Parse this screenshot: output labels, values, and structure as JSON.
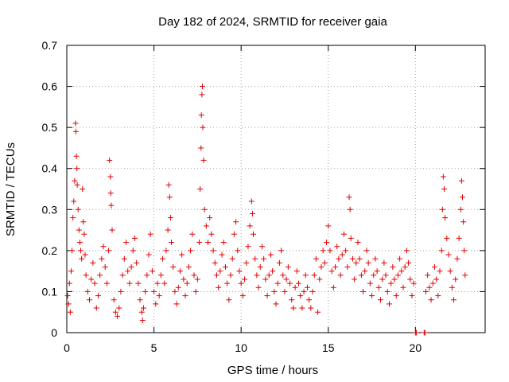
{
  "chart_data": {
    "type": "scatter",
    "title": "Day 182 of 2024, SRMTID for receiver gaia",
    "xlabel": "GPS time / hours",
    "ylabel": "SRMTID / TECUs",
    "xlim": [
      0,
      24
    ],
    "ylim": [
      0,
      0.7
    ],
    "xticks": [
      0,
      5,
      10,
      15,
      20
    ],
    "xtick_labels": [
      "0",
      "5",
      "10",
      "15",
      "20"
    ],
    "yticks": [
      0,
      0.1,
      0.2,
      0.3,
      0.4,
      0.5,
      0.6,
      0.7
    ],
    "ytick_labels": [
      "0",
      "0.1",
      "0.2",
      "0.3",
      "0.4",
      "0.5",
      "0.6",
      "0.7"
    ],
    "grid": true,
    "marker": "+",
    "color": "#e00000",
    "series": [
      {
        "name": "SRMTID",
        "points": [
          [
            0.05,
            0.09
          ],
          [
            0.1,
            0.07
          ],
          [
            0.15,
            0.12
          ],
          [
            0.2,
            0.05
          ],
          [
            0.25,
            0.15
          ],
          [
            0.3,
            0.2
          ],
          [
            0.35,
            0.28
          ],
          [
            0.4,
            0.32
          ],
          [
            0.45,
            0.37
          ],
          [
            0.5,
            0.51
          ],
          [
            0.52,
            0.49
          ],
          [
            0.55,
            0.43
          ],
          [
            0.58,
            0.4
          ],
          [
            0.6,
            0.36
          ],
          [
            0.65,
            0.3
          ],
          [
            0.7,
            0.25
          ],
          [
            0.75,
            0.22
          ],
          [
            0.8,
            0.2
          ],
          [
            0.85,
            0.18
          ],
          [
            0.9,
            0.35
          ],
          [
            0.95,
            0.27
          ],
          [
            1.0,
            0.24
          ],
          [
            1.05,
            0.19
          ],
          [
            1.1,
            0.14
          ],
          [
            1.2,
            0.1
          ],
          [
            1.3,
            0.08
          ],
          [
            1.4,
            0.13
          ],
          [
            1.5,
            0.17
          ],
          [
            1.6,
            0.12
          ],
          [
            1.7,
            0.06
          ],
          [
            1.8,
            0.09
          ],
          [
            1.9,
            0.14
          ],
          [
            2.0,
            0.18
          ],
          [
            2.1,
            0.21
          ],
          [
            2.2,
            0.16
          ],
          [
            2.3,
            0.12
          ],
          [
            2.4,
            0.2
          ],
          [
            2.45,
            0.42
          ],
          [
            2.5,
            0.38
          ],
          [
            2.52,
            0.34
          ],
          [
            2.55,
            0.31
          ],
          [
            2.6,
            0.25
          ],
          [
            2.7,
            0.08
          ],
          [
            2.8,
            0.05
          ],
          [
            2.9,
            0.04
          ],
          [
            3.0,
            0.06
          ],
          [
            3.1,
            0.1
          ],
          [
            3.2,
            0.14
          ],
          [
            3.3,
            0.18
          ],
          [
            3.4,
            0.22
          ],
          [
            3.5,
            0.15
          ],
          [
            3.6,
            0.12
          ],
          [
            3.7,
            0.16
          ],
          [
            3.8,
            0.2
          ],
          [
            3.9,
            0.23
          ],
          [
            4.0,
            0.17
          ],
          [
            4.1,
            0.12
          ],
          [
            4.2,
            0.08
          ],
          [
            4.3,
            0.05
          ],
          [
            4.35,
            0.03
          ],
          [
            4.4,
            0.06
          ],
          [
            4.5,
            0.1
          ],
          [
            4.6,
            0.14
          ],
          [
            4.7,
            0.19
          ],
          [
            4.8,
            0.24
          ],
          [
            4.9,
            0.15
          ],
          [
            5.0,
            0.1
          ],
          [
            5.1,
            0.07
          ],
          [
            5.2,
            0.12
          ],
          [
            5.3,
            0.09
          ],
          [
            5.4,
            0.14
          ],
          [
            5.5,
            0.18
          ],
          [
            5.6,
            0.12
          ],
          [
            5.7,
            0.2
          ],
          [
            5.8,
            0.25
          ],
          [
            5.85,
            0.36
          ],
          [
            5.9,
            0.33
          ],
          [
            5.95,
            0.28
          ],
          [
            6.0,
            0.22
          ],
          [
            6.1,
            0.16
          ],
          [
            6.2,
            0.1
          ],
          [
            6.3,
            0.07
          ],
          [
            6.4,
            0.11
          ],
          [
            6.5,
            0.15
          ],
          [
            6.6,
            0.19
          ],
          [
            6.7,
            0.13
          ],
          [
            6.8,
            0.09
          ],
          [
            6.9,
            0.12
          ],
          [
            7.0,
            0.16
          ],
          [
            7.1,
            0.2
          ],
          [
            7.2,
            0.24
          ],
          [
            7.3,
            0.14
          ],
          [
            7.4,
            0.1
          ],
          [
            7.5,
            0.13
          ],
          [
            7.6,
            0.22
          ],
          [
            7.65,
            0.35
          ],
          [
            7.7,
            0.45
          ],
          [
            7.72,
            0.53
          ],
          [
            7.75,
            0.58
          ],
          [
            7.78,
            0.6
          ],
          [
            7.8,
            0.5
          ],
          [
            7.85,
            0.42
          ],
          [
            7.9,
            0.3
          ],
          [
            8.0,
            0.26
          ],
          [
            8.1,
            0.22
          ],
          [
            8.2,
            0.28
          ],
          [
            8.3,
            0.24
          ],
          [
            8.4,
            0.2
          ],
          [
            8.5,
            0.17
          ],
          [
            8.6,
            0.14
          ],
          [
            8.7,
            0.11
          ],
          [
            8.8,
            0.15
          ],
          [
            8.9,
            0.19
          ],
          [
            9.0,
            0.22
          ],
          [
            9.1,
            0.16
          ],
          [
            9.2,
            0.12
          ],
          [
            9.3,
            0.08
          ],
          [
            9.4,
            0.14
          ],
          [
            9.5,
            0.18
          ],
          [
            9.6,
            0.24
          ],
          [
            9.7,
            0.27
          ],
          [
            9.8,
            0.2
          ],
          [
            9.9,
            0.15
          ],
          [
            10.0,
            0.12
          ],
          [
            10.1,
            0.09
          ],
          [
            10.2,
            0.13
          ],
          [
            10.3,
            0.17
          ],
          [
            10.4,
            0.21
          ],
          [
            10.5,
            0.26
          ],
          [
            10.6,
            0.32
          ],
          [
            10.65,
            0.29
          ],
          [
            10.7,
            0.24
          ],
          [
            10.8,
            0.18
          ],
          [
            10.9,
            0.14
          ],
          [
            11.0,
            0.11
          ],
          [
            11.1,
            0.16
          ],
          [
            11.2,
            0.21
          ],
          [
            11.3,
            0.18
          ],
          [
            11.4,
            0.13
          ],
          [
            11.5,
            0.09
          ],
          [
            11.6,
            0.14
          ],
          [
            11.7,
            0.19
          ],
          [
            11.8,
            0.15
          ],
          [
            11.9,
            0.1
          ],
          [
            12.0,
            0.07
          ],
          [
            12.1,
            0.12
          ],
          [
            12.2,
            0.17
          ],
          [
            12.3,
            0.2
          ],
          [
            12.4,
            0.14
          ],
          [
            12.5,
            0.1
          ],
          [
            12.6,
            0.13
          ],
          [
            12.7,
            0.16
          ],
          [
            12.8,
            0.12
          ],
          [
            12.9,
            0.08
          ],
          [
            13.0,
            0.06
          ],
          [
            13.1,
            0.11
          ],
          [
            13.2,
            0.15
          ],
          [
            13.3,
            0.12
          ],
          [
            13.4,
            0.09
          ],
          [
            13.5,
            0.06
          ],
          [
            13.6,
            0.1
          ],
          [
            13.7,
            0.14
          ],
          [
            13.8,
            0.11
          ],
          [
            13.9,
            0.08
          ],
          [
            14.0,
            0.06
          ],
          [
            14.1,
            0.1
          ],
          [
            14.2,
            0.14
          ],
          [
            14.3,
            0.18
          ],
          [
            14.4,
            0.05
          ],
          [
            14.5,
            0.13
          ],
          [
            14.6,
            0.16
          ],
          [
            14.7,
            0.2
          ],
          [
            14.8,
            0.17
          ],
          [
            14.9,
            0.22
          ],
          [
            15.0,
            0.26
          ],
          [
            15.1,
            0.2
          ],
          [
            15.2,
            0.15
          ],
          [
            15.3,
            0.11
          ],
          [
            15.4,
            0.16
          ],
          [
            15.5,
            0.21
          ],
          [
            15.6,
            0.18
          ],
          [
            15.7,
            0.14
          ],
          [
            15.8,
            0.19
          ],
          [
            15.9,
            0.24
          ],
          [
            16.0,
            0.2
          ],
          [
            16.1,
            0.16
          ],
          [
            16.2,
            0.33
          ],
          [
            16.25,
            0.3
          ],
          [
            16.3,
            0.23
          ],
          [
            16.4,
            0.18
          ],
          [
            16.5,
            0.13
          ],
          [
            16.6,
            0.17
          ],
          [
            16.7,
            0.22
          ],
          [
            16.8,
            0.18
          ],
          [
            16.9,
            0.14
          ],
          [
            17.0,
            0.1
          ],
          [
            17.1,
            0.15
          ],
          [
            17.2,
            0.2
          ],
          [
            17.3,
            0.17
          ],
          [
            17.4,
            0.12
          ],
          [
            17.5,
            0.09
          ],
          [
            17.6,
            0.14
          ],
          [
            17.7,
            0.18
          ],
          [
            17.8,
            0.15
          ],
          [
            17.9,
            0.11
          ],
          [
            18.0,
            0.08
          ],
          [
            18.1,
            0.13
          ],
          [
            18.2,
            0.17
          ],
          [
            18.3,
            0.14
          ],
          [
            18.4,
            0.1
          ],
          [
            18.5,
            0.07
          ],
          [
            18.6,
            0.12
          ],
          [
            18.7,
            0.16
          ],
          [
            18.8,
            0.13
          ],
          [
            18.9,
            0.09
          ],
          [
            19.0,
            0.14
          ],
          [
            19.1,
            0.18
          ],
          [
            19.2,
            0.15
          ],
          [
            19.3,
            0.11
          ],
          [
            19.4,
            0.16
          ],
          [
            19.5,
            0.2
          ],
          [
            19.6,
            0.17
          ],
          [
            19.7,
            0.13
          ],
          [
            19.8,
            0.09
          ],
          [
            19.9,
            0.12
          ],
          [
            20.0,
            0.0
          ],
          [
            20.05,
            0.0
          ],
          [
            20.5,
            0.0
          ],
          [
            20.55,
            0.0
          ],
          [
            20.6,
            0.1
          ],
          [
            20.7,
            0.14
          ],
          [
            20.8,
            0.11
          ],
          [
            20.9,
            0.08
          ],
          [
            21.0,
            0.12
          ],
          [
            21.1,
            0.16
          ],
          [
            21.2,
            0.13
          ],
          [
            21.3,
            0.09
          ],
          [
            21.4,
            0.15
          ],
          [
            21.5,
            0.2
          ],
          [
            21.55,
            0.3
          ],
          [
            21.6,
            0.38
          ],
          [
            21.65,
            0.35
          ],
          [
            21.7,
            0.28
          ],
          [
            21.8,
            0.23
          ],
          [
            21.9,
            0.19
          ],
          [
            22.0,
            0.15
          ],
          [
            22.1,
            0.11
          ],
          [
            22.2,
            0.08
          ],
          [
            22.3,
            0.13
          ],
          [
            22.4,
            0.18
          ],
          [
            22.5,
            0.23
          ],
          [
            22.6,
            0.3
          ],
          [
            22.65,
            0.37
          ],
          [
            22.7,
            0.33
          ],
          [
            22.75,
            0.27
          ],
          [
            22.8,
            0.2
          ],
          [
            22.85,
            0.14
          ]
        ]
      }
    ]
  }
}
